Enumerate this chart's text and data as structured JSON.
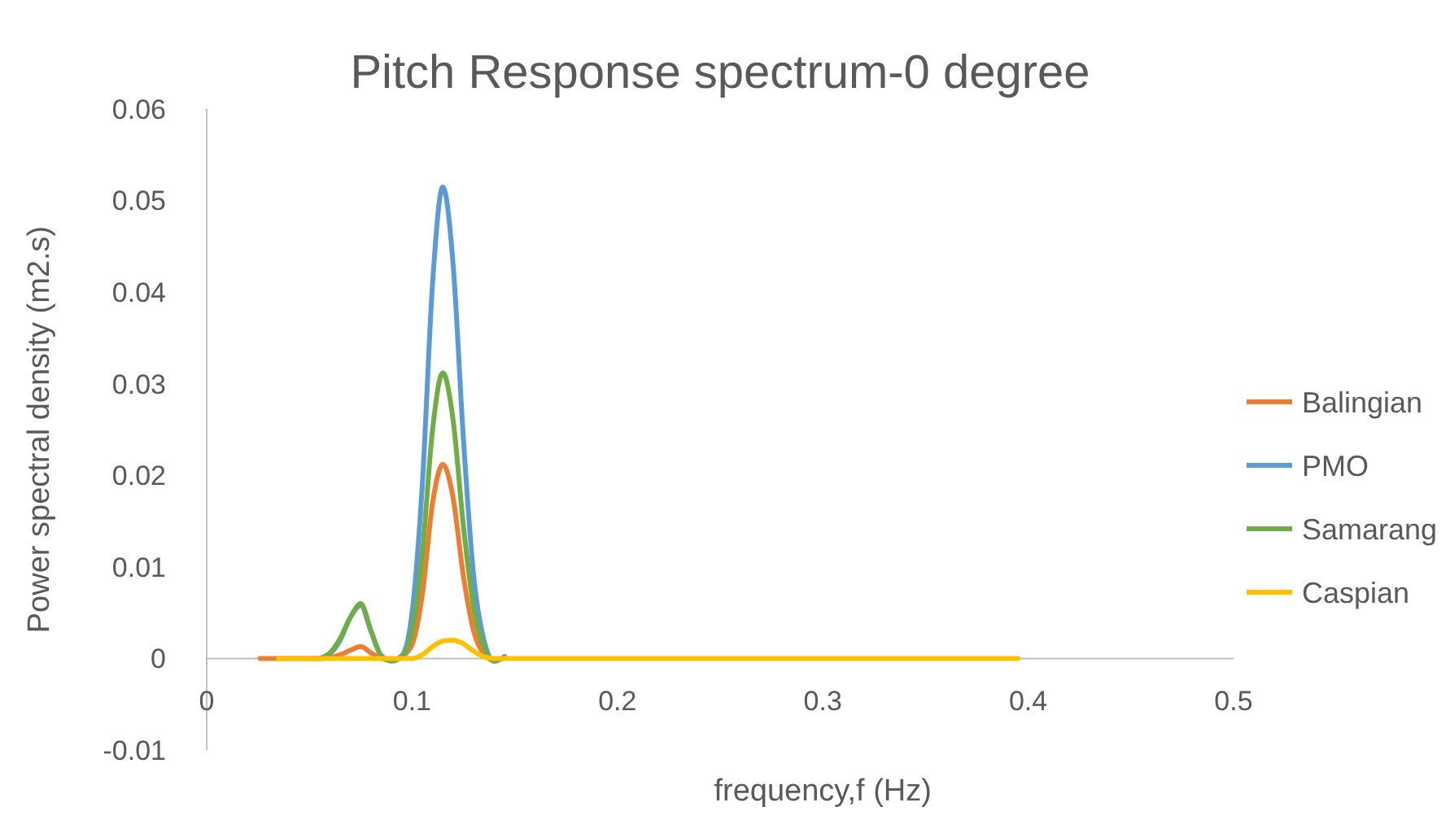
{
  "chart_data": {
    "type": "line",
    "title": "Pitch Response spectrum-0 degree",
    "xlabel": "frequency,f (Hz)",
    "ylabel": "Power spectral density (m2.s)",
    "xlim": [
      0,
      0.5
    ],
    "xticks": [
      0,
      0.1,
      0.2,
      0.3,
      0.4,
      0.5
    ],
    "ylim": [
      -0.01,
      0.06
    ],
    "yticks": [
      -0.01,
      0,
      0.01,
      0.02,
      0.03,
      0.04,
      0.05,
      0.06
    ],
    "grid": false,
    "legend": "right",
    "marker": "none",
    "line_style": "solid",
    "series": [
      {
        "name": "Balingian",
        "color": "#ed7d31",
        "x": [
          0.026,
          0.04,
          0.05,
          0.055,
          0.06,
          0.065,
          0.07,
          0.075,
          0.08,
          0.085,
          0.09,
          0.095,
          0.1,
          0.105,
          0.11,
          0.115,
          0.12,
          0.125,
          0.13,
          0.135,
          0.14,
          0.145
        ],
        "values": [
          0,
          0,
          0,
          0,
          0.0001,
          0.0004,
          0.0009,
          0.0013,
          0.0006,
          0,
          -0.0002,
          0.0002,
          0.0015,
          0.007,
          0.017,
          0.0212,
          0.0175,
          0.009,
          0.003,
          0.0005,
          -0.0002,
          0.0001
        ]
      },
      {
        "name": "PMO",
        "color": "#5b9bd5",
        "x": [
          0.055,
          0.06,
          0.065,
          0.07,
          0.075,
          0.08,
          0.085,
          0.09,
          0.095,
          0.1,
          0.105,
          0.11,
          0.115,
          0.12,
          0.125,
          0.13,
          0.135,
          0.14,
          0.145
        ],
        "values": [
          0,
          0.0005,
          0.002,
          0.0045,
          0.0058,
          0.003,
          0.0003,
          -0.0002,
          0.0003,
          0.005,
          0.019,
          0.041,
          0.0515,
          0.043,
          0.024,
          0.009,
          0.002,
          -0.0003,
          0.0002
        ]
      },
      {
        "name": "Samarang",
        "color": "#70ad47",
        "x": [
          0.055,
          0.06,
          0.065,
          0.07,
          0.075,
          0.08,
          0.085,
          0.09,
          0.095,
          0.1,
          0.105,
          0.11,
          0.115,
          0.12,
          0.125,
          0.13,
          0.135,
          0.14,
          0.145
        ],
        "values": [
          0,
          0.0006,
          0.0022,
          0.0045,
          0.006,
          0.003,
          0.0003,
          -0.0003,
          0.0002,
          0.003,
          0.0115,
          0.025,
          0.0312,
          0.026,
          0.0145,
          0.0055,
          0.0012,
          -0.0003,
          0.0002
        ]
      },
      {
        "name": "Caspian",
        "color": "#ffc000",
        "x": [
          0.035,
          0.04,
          0.05,
          0.06,
          0.07,
          0.08,
          0.09,
          0.1,
          0.105,
          0.11,
          0.115,
          0.12,
          0.125,
          0.13,
          0.135,
          0.14,
          0.15,
          0.16,
          0.17,
          0.2,
          0.25,
          0.3,
          0.35,
          0.395
        ],
        "values": [
          0,
          0,
          0,
          0,
          0,
          0,
          0,
          0,
          0.0004,
          0.0013,
          0.0019,
          0.002,
          0.0016,
          0.0008,
          0.0002,
          0,
          0,
          0,
          0,
          0,
          0,
          0,
          0,
          0
        ]
      }
    ]
  }
}
